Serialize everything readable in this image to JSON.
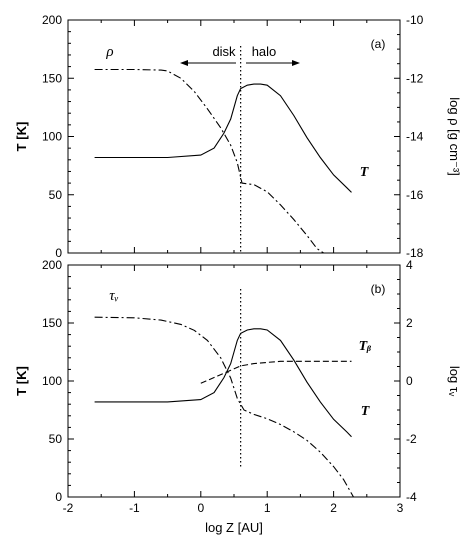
{
  "chart_data": [
    {
      "type": "line",
      "panel_label": "(a)",
      "ylabel_left": "T [K]",
      "ylabel_right": "log ρ [g cm⁻³]",
      "xlim": [
        -2,
        3
      ],
      "ylim_left": [
        0,
        200
      ],
      "ylim_right": [
        -18,
        -10
      ],
      "yticks_left": [
        "0",
        "50",
        "100",
        "150",
        "200"
      ],
      "yticks_right": [
        "-18",
        "-16",
        "-14",
        "-12",
        "-10"
      ],
      "x_divider": 0.6,
      "annotations": {
        "disk": "disk",
        "halo": "halo",
        "rho_label": "ρ",
        "T_label": "T"
      },
      "series": [
        {
          "axis": "left",
          "style": "solid",
          "x": [
            -1.6,
            -1.0,
            -0.5,
            0.0,
            0.2,
            0.35,
            0.45,
            0.55,
            0.6,
            0.7,
            0.8,
            0.9,
            1.0,
            1.2,
            1.4,
            1.6,
            1.8,
            2.0,
            2.2,
            2.27
          ],
          "y": [
            82,
            82,
            82,
            84,
            90,
            103,
            115,
            135,
            141,
            144,
            145,
            145,
            144,
            135,
            118,
            99,
            82,
            67,
            56,
            52
          ]
        },
        {
          "axis": "right",
          "style": "dashdot",
          "x": [
            -1.6,
            -1.0,
            -0.6,
            -0.5,
            -0.3,
            -0.1,
            0.1,
            0.3,
            0.45,
            0.55,
            0.62,
            0.8,
            1.0,
            1.2,
            1.4,
            1.6,
            1.75,
            1.85
          ],
          "y": [
            -11.7,
            -11.7,
            -11.72,
            -11.75,
            -12.0,
            -12.45,
            -13.05,
            -13.7,
            -14.3,
            -14.9,
            -15.6,
            -15.65,
            -15.9,
            -16.35,
            -16.85,
            -17.4,
            -17.85,
            -18.0
          ]
        }
      ]
    },
    {
      "type": "line",
      "panel_label": "(b)",
      "xlabel": "log Z [AU]",
      "ylabel_left": "T [K]",
      "ylabel_right": "log τᵥ",
      "xlim": [
        -2,
        3
      ],
      "ylim_left": [
        0,
        200
      ],
      "ylim_right": [
        -4,
        4
      ],
      "xticks": [
        "-2",
        "-1",
        "0",
        "1",
        "2",
        "3"
      ],
      "yticks_left": [
        "0",
        "50",
        "100",
        "150",
        "200"
      ],
      "yticks_right": [
        "-4",
        "-2",
        "0",
        "2",
        "4"
      ],
      "x_divider": 0.6,
      "annotations": {
        "tau_label": "τᵥ",
        "Tb_label": "Tᵦ",
        "T_label": "T"
      },
      "series": [
        {
          "axis": "left",
          "style": "solid",
          "x": [
            -1.6,
            -1.0,
            -0.5,
            0.0,
            0.2,
            0.35,
            0.45,
            0.55,
            0.6,
            0.7,
            0.8,
            0.9,
            1.0,
            1.2,
            1.4,
            1.6,
            1.8,
            2.0,
            2.2,
            2.27
          ],
          "y": [
            82,
            82,
            82,
            84,
            90,
            103,
            115,
            135,
            141,
            144,
            145,
            145,
            144,
            135,
            118,
            99,
            82,
            67,
            56,
            52
          ]
        },
        {
          "axis": "left",
          "style": "dashed",
          "x": [
            0.0,
            0.2,
            0.4,
            0.6,
            0.8,
            1.0,
            1.2,
            1.5,
            1.8,
            2.1,
            2.27
          ],
          "y": [
            98,
            103,
            108,
            113,
            115,
            116,
            117,
            117,
            117,
            117,
            117
          ]
        },
        {
          "axis": "right",
          "style": "dashdot",
          "x": [
            -1.6,
            -1.0,
            -0.6,
            -0.3,
            -0.1,
            0.1,
            0.3,
            0.45,
            0.55,
            0.65,
            0.8,
            1.0,
            1.2,
            1.4,
            1.6,
            1.8,
            2.0,
            2.15,
            2.25,
            2.3
          ],
          "y": [
            2.2,
            2.18,
            2.1,
            1.95,
            1.75,
            1.4,
            0.8,
            0.1,
            -0.6,
            -1.0,
            -1.15,
            -1.3,
            -1.5,
            -1.75,
            -2.05,
            -2.45,
            -2.95,
            -3.4,
            -3.8,
            -4.0
          ]
        }
      ]
    }
  ]
}
